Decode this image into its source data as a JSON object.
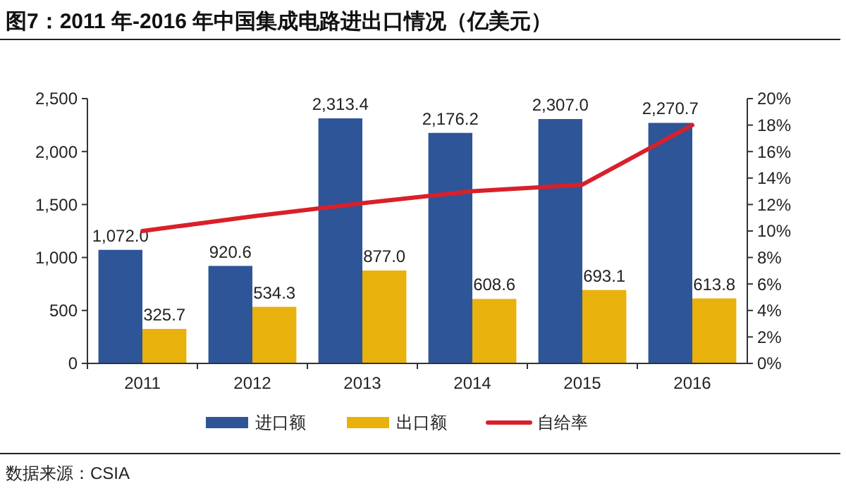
{
  "chart_data": {
    "type": "bar",
    "title": "图7：2011 年-2016 年中国集成电路进出口情况（亿美元）",
    "categories": [
      "2011",
      "2012",
      "2013",
      "2014",
      "2015",
      "2016"
    ],
    "series": [
      {
        "name": "进口额",
        "color": "#2e5597",
        "values": [
          1072.0,
          920.6,
          2313.4,
          2176.2,
          2307.0,
          2270.7
        ],
        "value_labels": [
          "1,072.0",
          "920.6",
          "2,313.4",
          "2,176.2",
          "2,307.0",
          "2,270.7"
        ]
      },
      {
        "name": "出口额",
        "color": "#e8b10c",
        "values": [
          325.7,
          534.3,
          877.0,
          608.6,
          693.1,
          613.8
        ],
        "value_labels": [
          "325.7",
          "534.3",
          "877.0",
          "608.6",
          "693.1",
          "613.8"
        ]
      },
      {
        "name": "自给率",
        "type": "line",
        "axis": "y2",
        "color": "#d9202a",
        "values": [
          10.0,
          11.1,
          12.1,
          13.0,
          13.5,
          18.0
        ]
      }
    ],
    "ylim": [
      0,
      2500
    ],
    "yticks": [
      0,
      500,
      {
        "value": 1000,
        "label": "1,000"
      },
      {
        "value": 1500,
        "label": "1,500"
      },
      {
        "value": 2000,
        "label": "2,000"
      },
      {
        "value": 2500,
        "label": "2,500"
      }
    ],
    "y2lim": [
      0,
      20
    ],
    "y2ticks": [
      {
        "value": 0,
        "label": "0%"
      },
      {
        "value": 2,
        "label": "2%"
      },
      {
        "value": 4,
        "label": "4%"
      },
      {
        "value": 6,
        "label": "6%"
      },
      {
        "value": 8,
        "label": "8%"
      },
      {
        "value": 10,
        "label": "10%"
      },
      {
        "value": 12,
        "label": "12%"
      },
      {
        "value": 14,
        "label": "14%"
      },
      {
        "value": 16,
        "label": "16%"
      },
      {
        "value": 18,
        "label": "18%"
      },
      {
        "value": 20,
        "label": "20%"
      }
    ],
    "legend": "bottom",
    "grid": false,
    "marker": "none",
    "line_style": "solid",
    "annotations": [
      "数据来源：CSIA"
    ]
  }
}
